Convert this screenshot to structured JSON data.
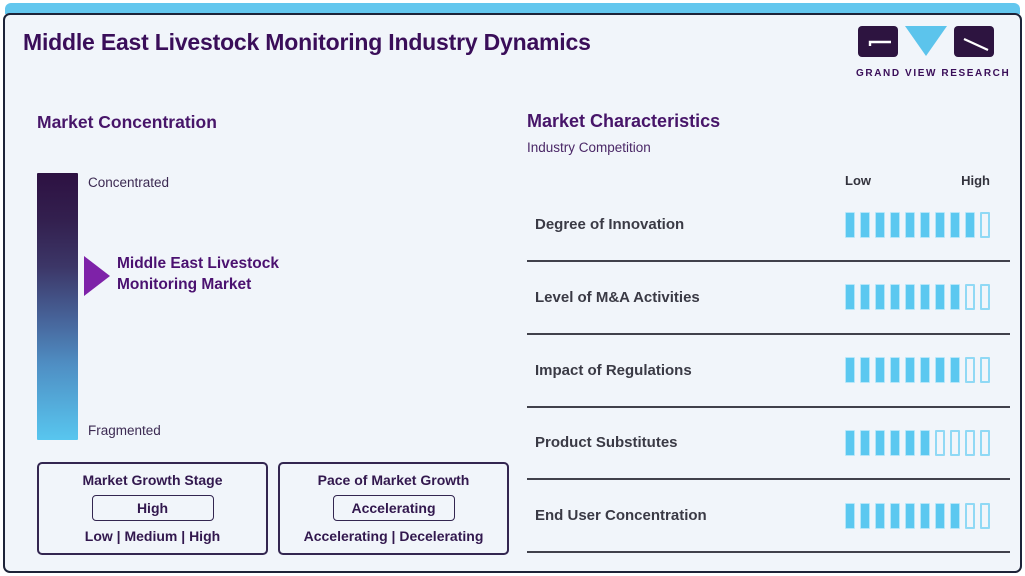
{
  "page": {
    "title": "Middle East Livestock Monitoring Industry Dynamics"
  },
  "brand": {
    "name": "GRAND VIEW RESEARCH"
  },
  "market_concentration": {
    "heading": "Market Concentration",
    "scale_top": "Concentrated",
    "scale_bottom": "Fragmented",
    "pointer_line1": "Middle East Livestock",
    "pointer_line2": "Monitoring Market"
  },
  "growth_stage_box": {
    "title": "Market Growth Stage",
    "value": "High",
    "options": "Low | Medium | High"
  },
  "pace_box": {
    "title": "Pace of Market Growth",
    "value": "Accelerating",
    "options": "Accelerating | Decelerating"
  },
  "market_characteristics": {
    "heading": "Market Characteristics",
    "subheading": "Industry Competition",
    "scale_low": "Low",
    "scale_high": "High",
    "rows": [
      {
        "label": "Degree of Innovation",
        "rating": 9
      },
      {
        "label": "Level of M&A Activities",
        "rating": 8
      },
      {
        "label": "Impact of Regulations",
        "rating": 8
      },
      {
        "label": "Product Substitutes",
        "rating": 6
      },
      {
        "label": "End User Concentration",
        "rating": 8
      }
    ]
  },
  "chart_data": {
    "type": "bar",
    "title": "Market Characteristics — Industry Competition",
    "categories": [
      "Degree of Innovation",
      "Level of M&A Activities",
      "Impact of Regulations",
      "Product Substitutes",
      "End User Concentration"
    ],
    "values": [
      9,
      8,
      8,
      6,
      8
    ],
    "scale_max": 10,
    "xlabel": "Low to High rating scale",
    "orientation": "horizontal",
    "legend_position": "none",
    "grid": false
  },
  "colors": {
    "accent_blue": "#5bc8f0",
    "bar_empty_border": "#90d9f5",
    "title_purple": "#3a0e59",
    "heading_purple": "#471569",
    "arrow_purple": "#7e22a8",
    "gradient_top": "#2d1142",
    "gradient_bottom": "#58c6ef",
    "card_background": "#f1f5fa",
    "card_border": "#1d2338",
    "row_label_dark": "#3a3a45"
  }
}
